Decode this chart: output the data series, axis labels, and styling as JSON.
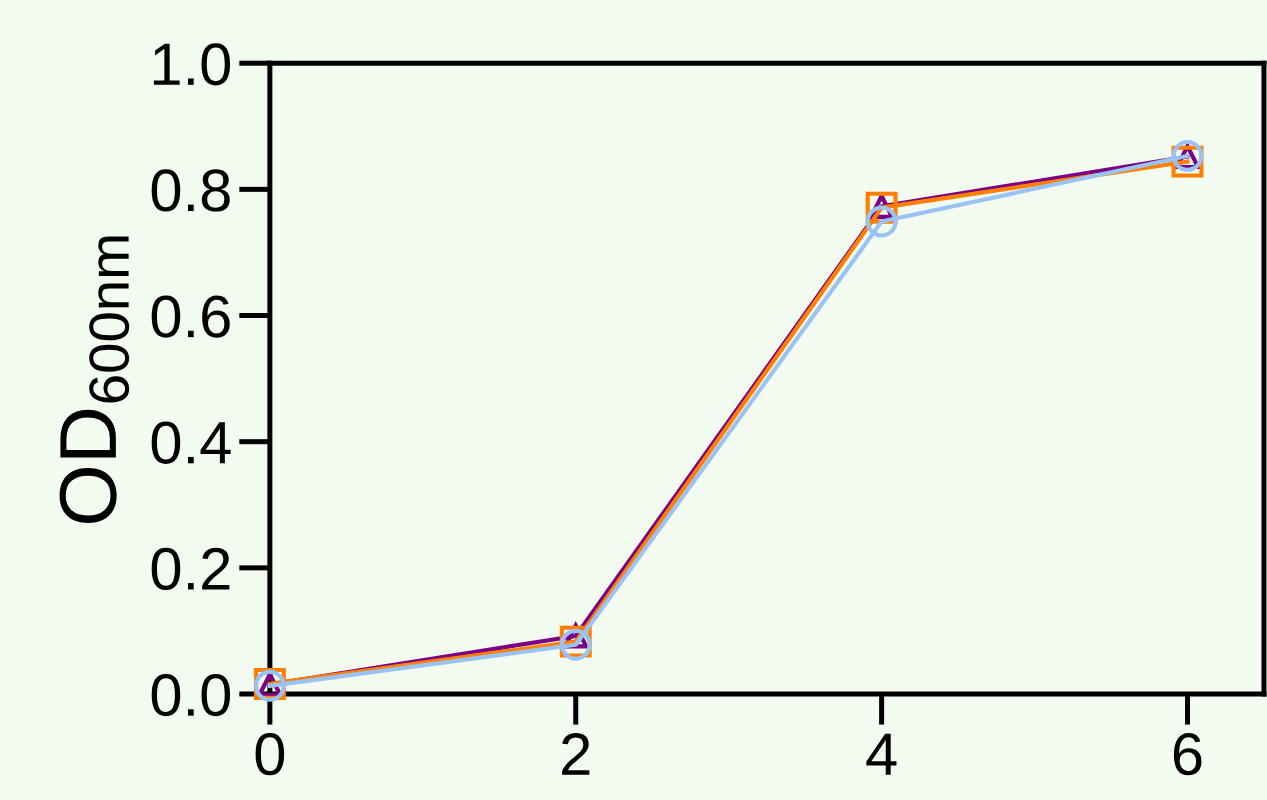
{
  "chart_data": {
    "type": "line",
    "ylabel": "OD$_{600nm}$",
    "x": [
      0,
      2,
      4,
      6
    ],
    "series": [
      {
        "color": "#7a0085",
        "marker": "triangle",
        "values": [
          0.015,
          0.092,
          0.773,
          0.852
        ]
      },
      {
        "color": "#ff7f00",
        "marker": "square",
        "values": [
          0.016,
          0.083,
          0.771,
          0.844
        ]
      },
      {
        "color": "#99c2f5",
        "marker": "circle",
        "values": [
          0.013,
          0.078,
          0.749,
          0.853
        ]
      }
    ],
    "xlim": [
      0,
      6.5
    ],
    "xticks": [
      0,
      2,
      4,
      6
    ],
    "ylim": [
      0,
      1.0
    ],
    "yticks": [
      {
        "value": 0,
        "label": "0.0"
      },
      {
        "value": 0.2,
        "label": "0.2"
      },
      {
        "value": 0.4,
        "label": "0.4"
      },
      {
        "value": 0.6,
        "label": "0.6"
      },
      {
        "value": 0.8,
        "label": "0.8"
      },
      {
        "value": 1.0,
        "label": "1.0"
      }
    ],
    "line_style": "solid"
  }
}
